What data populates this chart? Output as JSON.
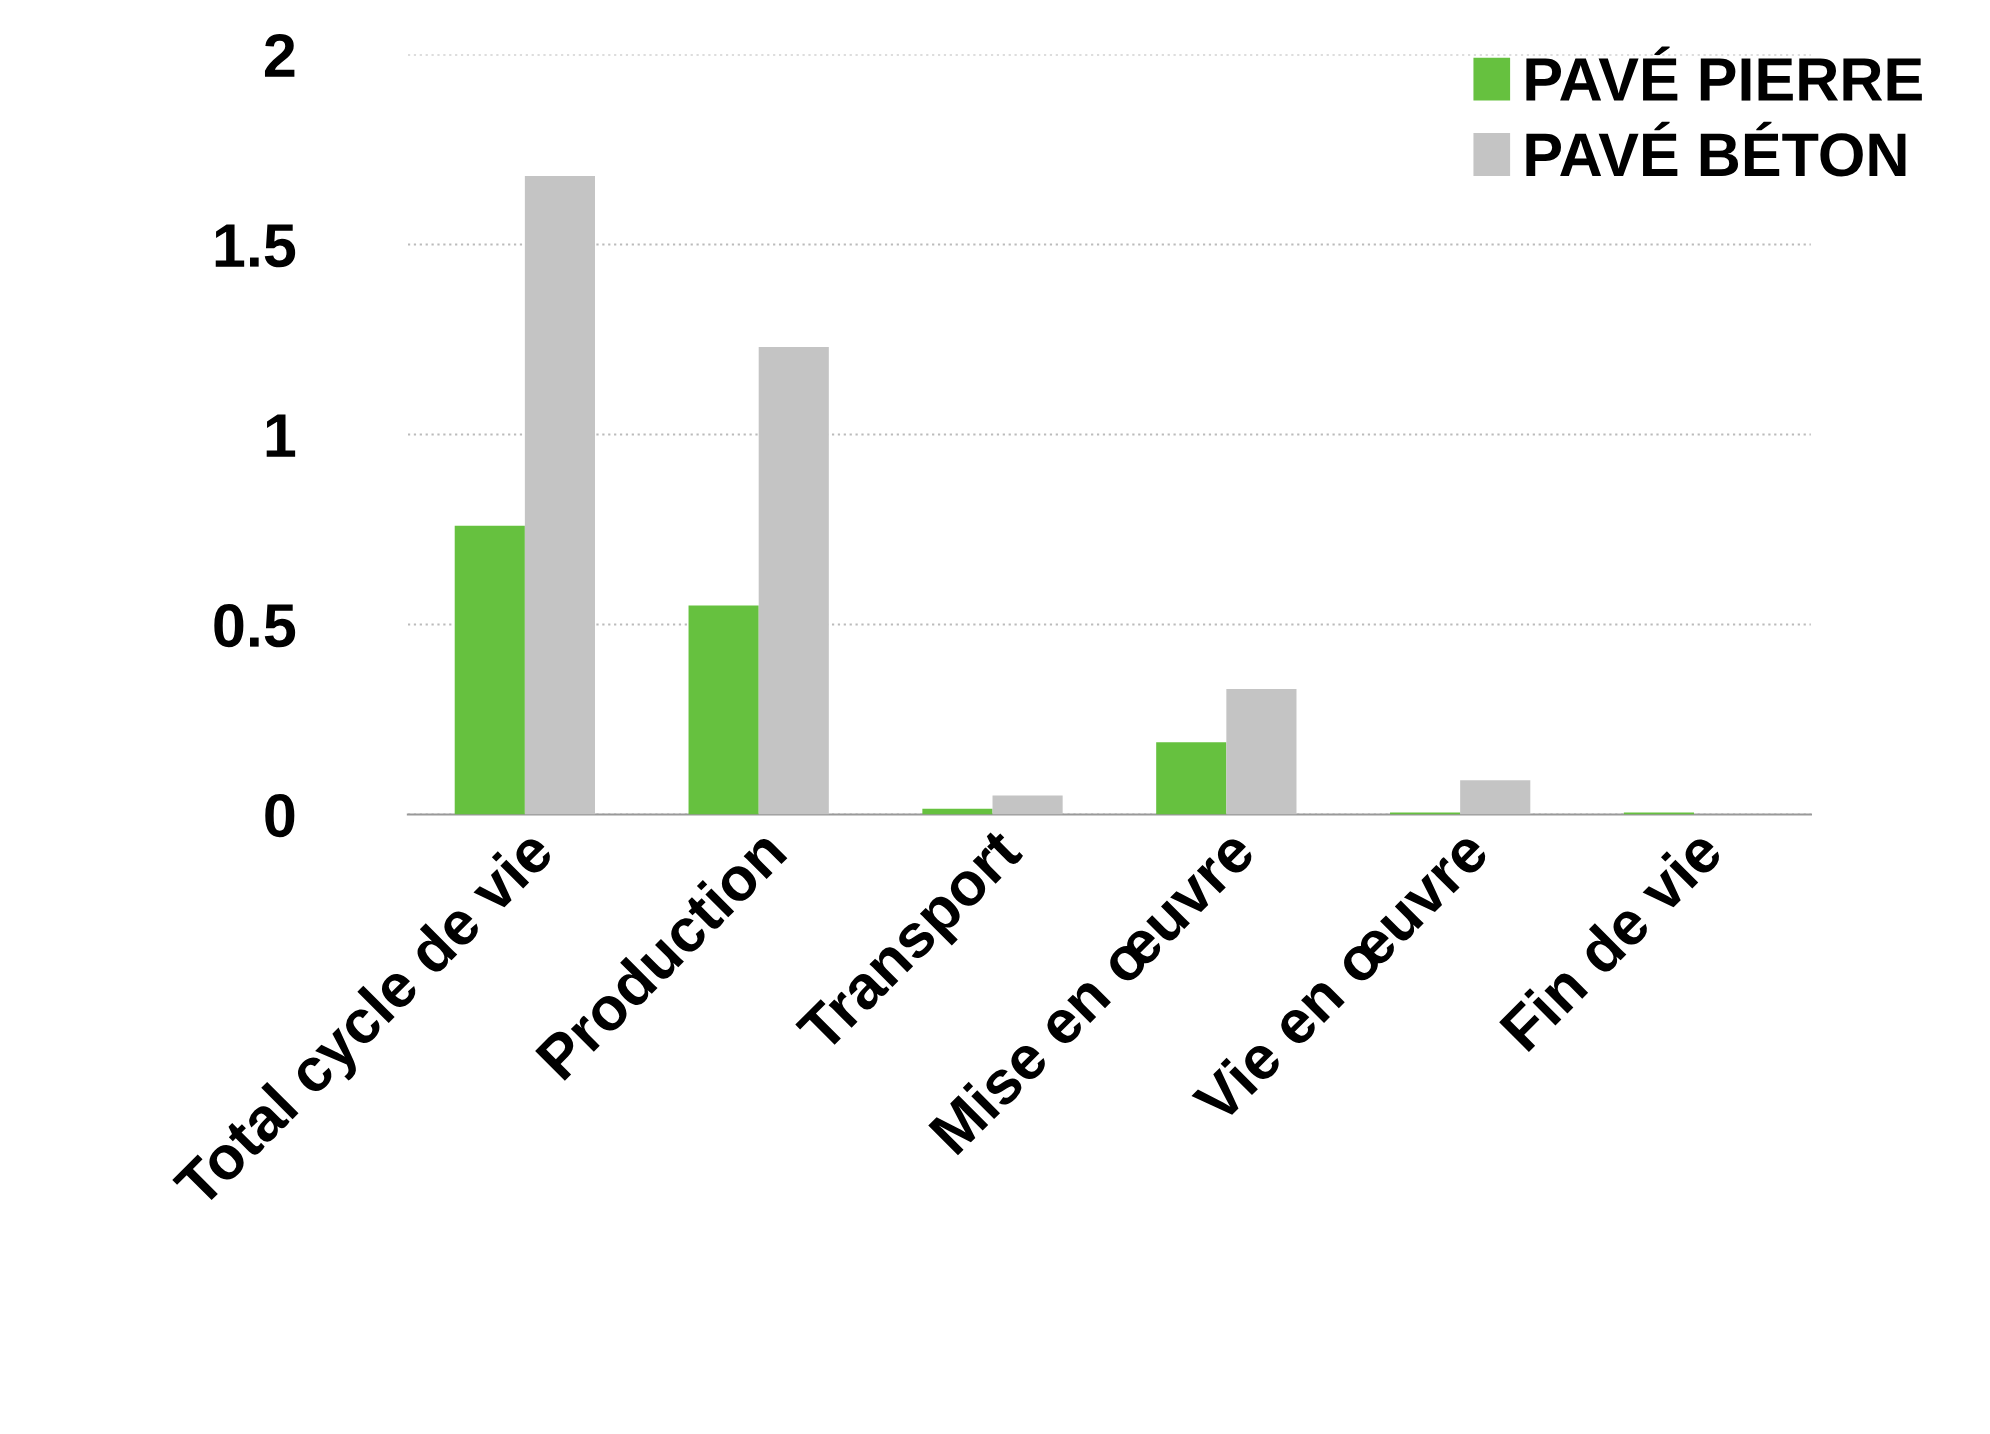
{
  "chart_data": {
    "type": "bar",
    "categories": [
      "Total cycle de vie",
      "Production",
      "Transport",
      "Mise en œuvre",
      "Vie en œuvre",
      "Fin de vie"
    ],
    "series": [
      {
        "name": "PAVÉ PIERRE",
        "color": "#66c13f",
        "values": [
          0.76,
          0.55,
          0.015,
          0.19,
          0.005,
          0.005
        ]
      },
      {
        "name": "PAVÉ BÉTON",
        "color": "#c4c4c4",
        "values": [
          1.68,
          1.23,
          0.05,
          0.33,
          0.09,
          null
        ]
      }
    ],
    "ylim": [
      0,
      2
    ],
    "yticks": [
      0,
      0.5,
      1,
      1.5,
      2
    ],
    "grid": "y",
    "legend": "top right"
  }
}
